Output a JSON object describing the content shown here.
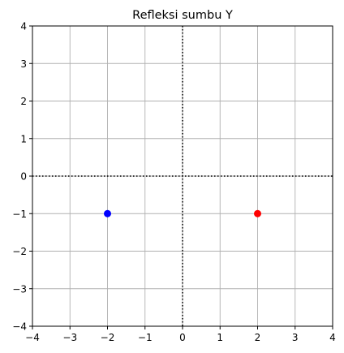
{
  "chart_data": {
    "type": "scatter",
    "title": "Refleksi sumbu Y",
    "xlabel": "",
    "ylabel": "",
    "xlim": [
      -4,
      4
    ],
    "ylim": [
      -4,
      4
    ],
    "xticks": [
      -4,
      -3,
      -2,
      -1,
      0,
      1,
      2,
      3,
      4
    ],
    "yticks": [
      -4,
      -3,
      -2,
      -1,
      0,
      1,
      2,
      3,
      4
    ],
    "xtick_labels": [
      "−4",
      "−3",
      "−2",
      "−1",
      "0",
      "1",
      "2",
      "3",
      "4"
    ],
    "ytick_labels": [
      "−4",
      "−3",
      "−2",
      "−1",
      "0",
      "1",
      "2",
      "3",
      "4"
    ],
    "grid": true,
    "reference_lines": [
      {
        "orientation": "horizontal",
        "value": 0,
        "style": "dotted",
        "color": "#000000"
      },
      {
        "orientation": "vertical",
        "value": 0,
        "style": "dotted",
        "color": "#000000"
      }
    ],
    "points": [
      {
        "x": 2,
        "y": -1,
        "color": "#ff0000"
      },
      {
        "x": -2,
        "y": -1,
        "color": "#0000ff"
      }
    ]
  }
}
